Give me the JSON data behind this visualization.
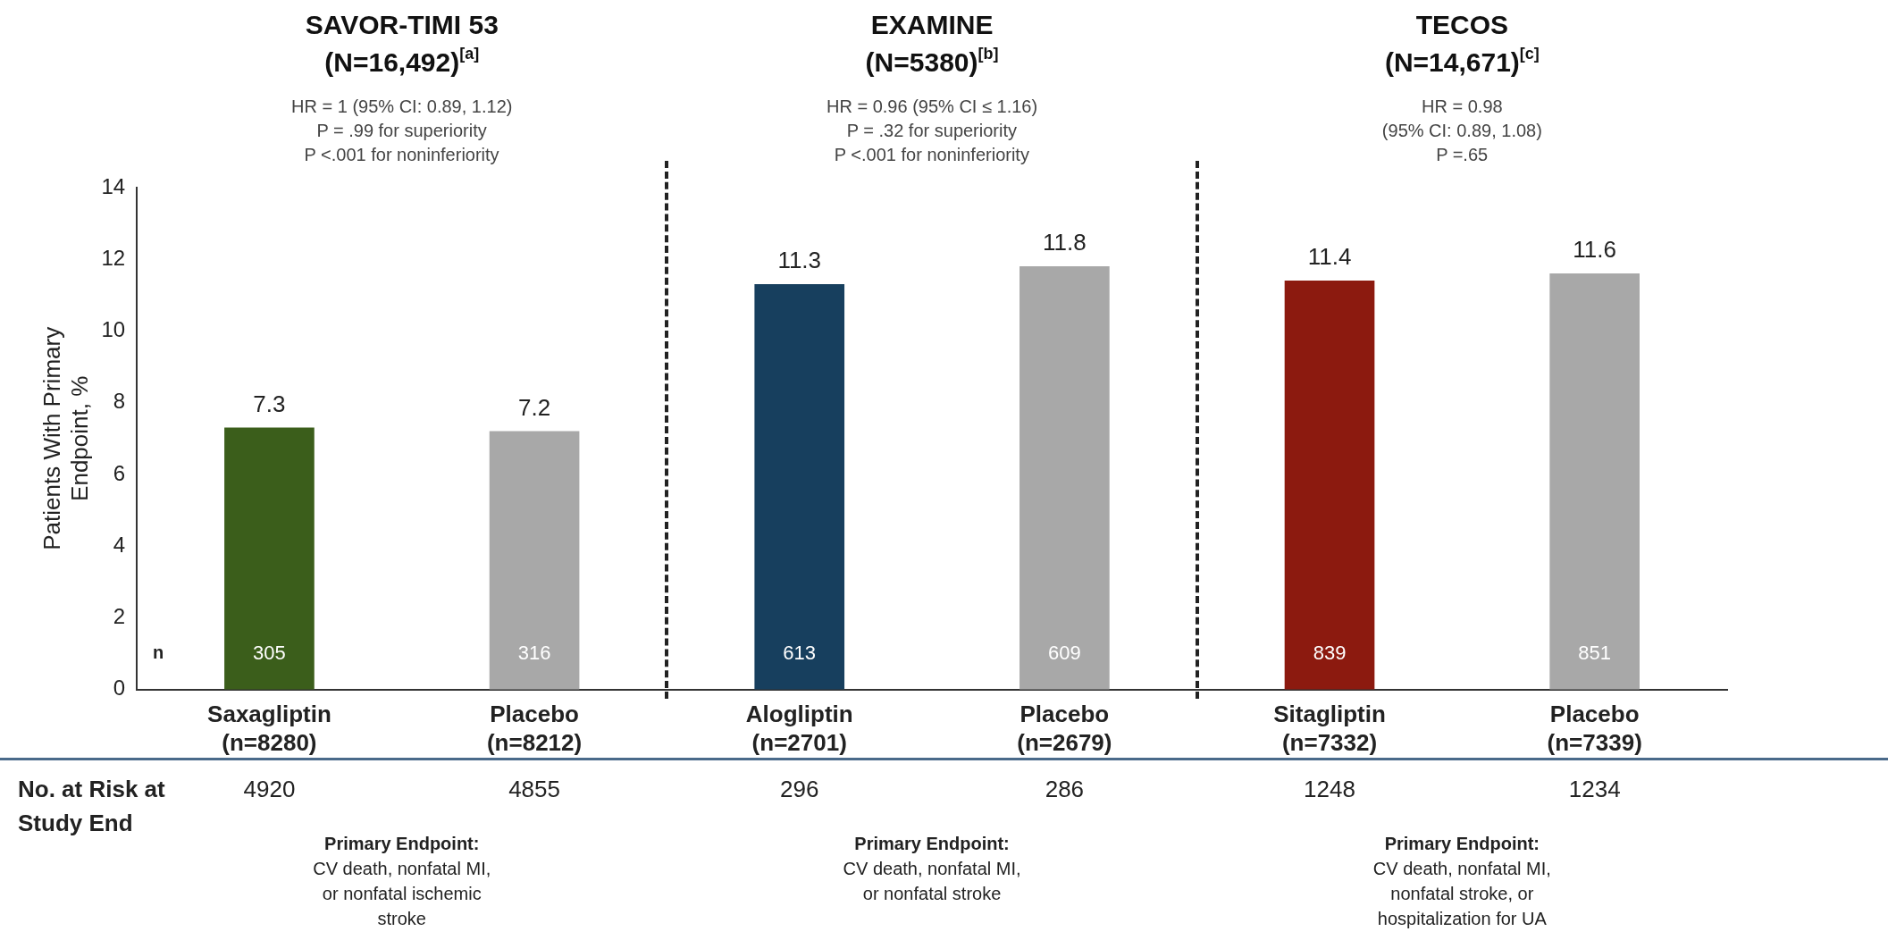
{
  "chart_data": {
    "type": "bar",
    "ylabel": "Patients With Primary\nEndpoint, %",
    "categories": [
      "Saxagliptin\n(n=8280)",
      "Placebo\n(n=8212)",
      "Alogliptin\n(n=2701)",
      "Placebo\n(n=2679)",
      "Sitagliptin\n(n=7332)",
      "Placebo\n(n=7339)"
    ],
    "values": [
      7.3,
      7.2,
      11.3,
      11.8,
      11.4,
      11.6
    ],
    "colors": [
      "#3b5e1b",
      "#a8a8a8",
      "#173f5e",
      "#a8a8a8",
      "#8c1a0f",
      "#a8a8a8"
    ],
    "ylim": [
      0,
      14
    ],
    "yticks": [
      0,
      2,
      4,
      6,
      8,
      10,
      12,
      14
    ],
    "grid": false,
    "legend": false,
    "data_labels": true,
    "annotations": [
      "SAVOR-TIMI 53\n(N=16,492)$^{[a]}$",
      "EXAMINE\n(N=5380)$^{[b]}$",
      "TECOS\n(N=14,671)$^{[c]}$",
      "HR = 1 (95% CI: 0.89, 1.12)\nP = .99 for superiority\nP <.001 for noninferiority",
      "HR = 0.96 (95% CI ≤ 1.16)\nP = .32 for superiority\nP <.001 for noninferiority",
      "HR = 0.98\n(95% CI: 0.89, 1.08)\nP =.65",
      "n",
      "No. at Risk at\nStudy End",
      "Primary Endpoint:\nCV death, nonfatal MI,\nor nonfatal ischemic\nstroke",
      "Primary Endpoint:\nCV death, nonfatal MI,\nor nonfatal stroke",
      "Primary Endpoint:\nCV death, nonfatal MI,\nnonfatal stroke, or\nhospitalization for UA",
      "305",
      "316",
      "613",
      "609",
      "839",
      "851",
      "4920",
      "4855",
      "296",
      "286",
      "1248",
      "1234"
    ]
  }
}
